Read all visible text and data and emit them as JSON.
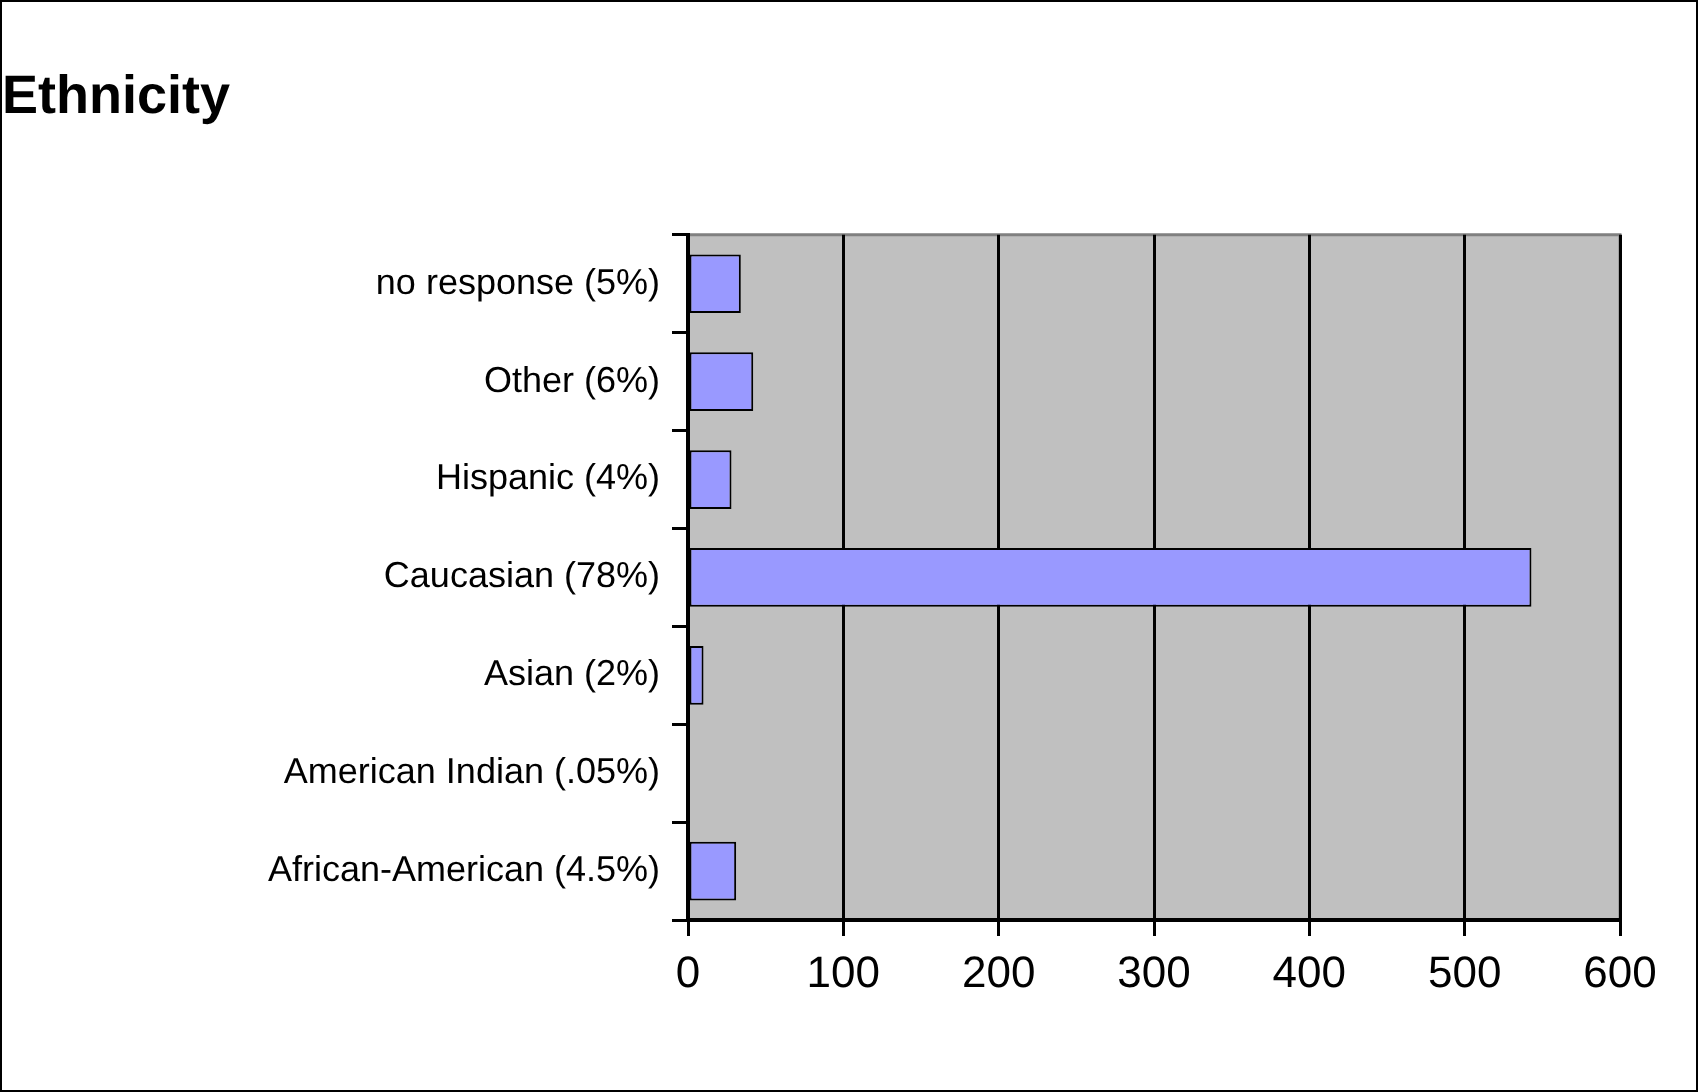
{
  "chart_data": {
    "type": "bar",
    "title": "Ethnicity",
    "orientation": "horizontal",
    "categories": [
      "no response (5%)",
      "Other (6%)",
      "Hispanic (4%)",
      "Caucasian (78%)",
      "Asian (2%)",
      "American Indian (.05%)",
      "African-American (4.5%)"
    ],
    "values": [
      34,
      42,
      28,
      543,
      10,
      0,
      31
    ],
    "color": "#9999ff",
    "xlim": [
      0,
      600
    ],
    "xticks": [
      0,
      100,
      200,
      300,
      400,
      500,
      600
    ],
    "grid": "x",
    "legend": false
  }
}
